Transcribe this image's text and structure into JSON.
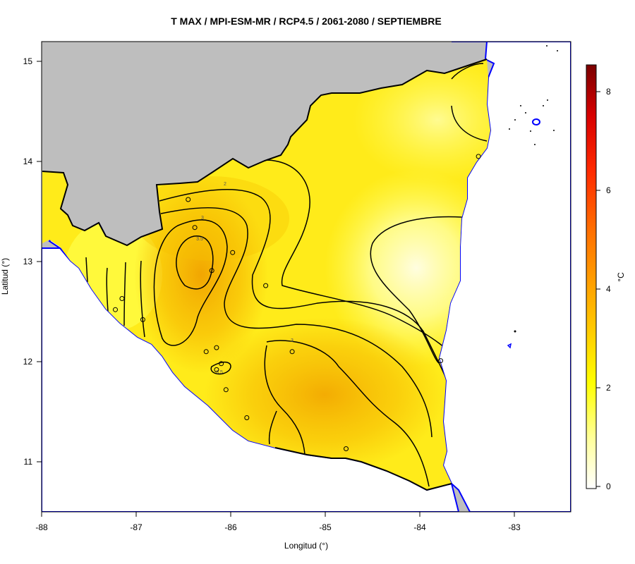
{
  "title": "T MAX / MPI-ESM-MR / RCP4.5 / 2061-2080 / SEPTIEMBRE",
  "x_axis": {
    "label": "Longitud (°)",
    "ticks": [
      "-88",
      "-87",
      "-86",
      "-85",
      "-84",
      "-83"
    ]
  },
  "y_axis": {
    "label": "Latitud (°)",
    "ticks": [
      "11",
      "12",
      "13",
      "14",
      "15"
    ]
  },
  "colorbar": {
    "label": "°C",
    "ticks": [
      "0",
      "2",
      "4",
      "6",
      "8"
    ],
    "min": -0.2,
    "max": 8.6
  },
  "contour_labels": [
    "2",
    "3",
    "3.5",
    "3.5",
    "3"
  ],
  "colors": {
    "land": "#bebebe",
    "sea": "#ffffff",
    "coast": "#0000ff",
    "border": "#000000"
  },
  "map": {
    "lon_range": [
      -88,
      -82.4
    ],
    "lat_range": [
      10.5,
      15.2
    ],
    "stations": [
      [
        -86.45,
        13.62
      ],
      [
        -86.38,
        13.34
      ],
      [
        -85.98,
        13.09
      ],
      [
        -86.2,
        12.91
      ],
      [
        -87.15,
        12.63
      ],
      [
        -87.22,
        12.52
      ],
      [
        -86.93,
        12.42
      ],
      [
        -85.63,
        12.76
      ],
      [
        -86.26,
        12.1
      ],
      [
        -86.15,
        12.14
      ],
      [
        -86.1,
        11.98
      ],
      [
        -86.15,
        11.92
      ],
      [
        -86.05,
        11.72
      ],
      [
        -85.35,
        12.1
      ],
      [
        -85.83,
        11.44
      ],
      [
        -84.78,
        11.13
      ],
      [
        -83.78,
        12.01
      ],
      [
        -83.38,
        14.05
      ]
    ]
  }
}
